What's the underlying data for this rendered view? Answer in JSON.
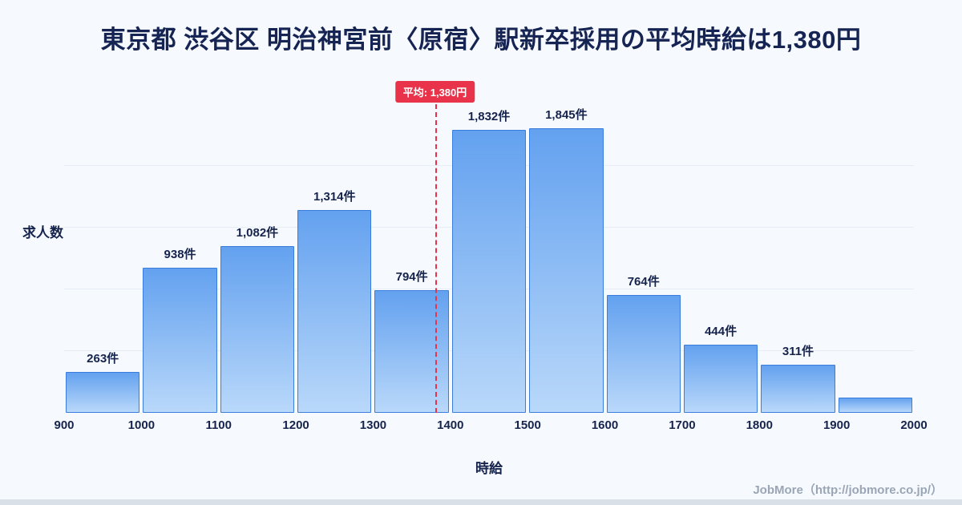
{
  "page": {
    "footer": "JobMore（http://jobmore.co.jp/）"
  },
  "chart_data": {
    "type": "bar",
    "title": "東京都 渋谷区 明治神宮前〈原宿〉駅新卒採用の平均時給は1,380円",
    "xlabel": "時給",
    "ylabel": "求人数",
    "x_range": [
      900,
      2000
    ],
    "ylim": [
      0,
      2000
    ],
    "grid": "faint horizontal",
    "bin_edges": [
      900,
      1000,
      1100,
      1200,
      1300,
      1400,
      1500,
      1600,
      1700,
      1800,
      1900,
      2000
    ],
    "x_ticks": [
      "900",
      "1000",
      "1100",
      "1200",
      "1300",
      "1400",
      "1500",
      "1600",
      "1700",
      "1800",
      "1900",
      "2000"
    ],
    "values": [
      263,
      938,
      1082,
      1314,
      794,
      1832,
      1845,
      764,
      444,
      311,
      100
    ],
    "labels": [
      "263件",
      "938件",
      "1,082件",
      "1,314件",
      "794件",
      "1,832件",
      "1,845件",
      "764件",
      "444件",
      "311件",
      ""
    ],
    "average": {
      "value": 1380,
      "label": "平均: 1,380円"
    },
    "colors": {
      "bar_top": "#63a1ef",
      "bar_bottom": "#b9d8fa",
      "bar_border": "#3b7ddd",
      "average_line": "#e8334a",
      "title_text": "#152452",
      "background": "#f6f9fd"
    }
  }
}
